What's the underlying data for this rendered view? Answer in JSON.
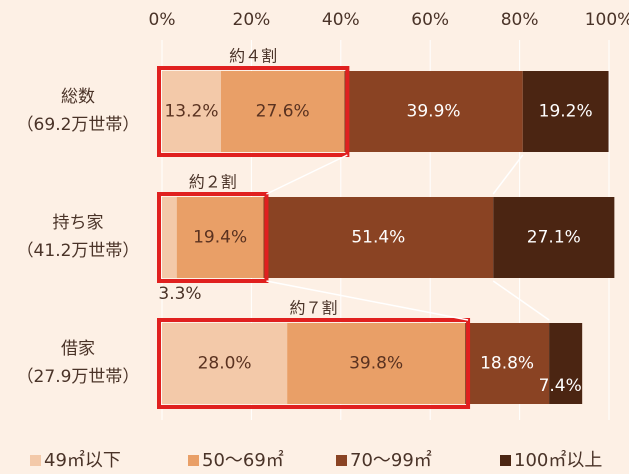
{
  "chart_data": {
    "type": "stacked-bar-horizontal",
    "categories": [
      [
        "総数",
        "（69.2万世帯）"
      ],
      [
        "持ち家",
        "（41.2万世帯）"
      ],
      [
        "借家",
        "（27.9万世帯）"
      ]
    ],
    "series": [
      {
        "name": "49㎡以下",
        "color": "#f3c9a9",
        "values": [
          13.2,
          3.3,
          28.0
        ],
        "value_labels": [
          "13.2%",
          "3.3%",
          "28.0%"
        ]
      },
      {
        "name": "50～69㎡",
        "color": "#e99f67",
        "values": [
          27.6,
          19.4,
          39.8
        ],
        "value_labels": [
          "27.6%",
          "19.4%",
          "39.8%"
        ]
      },
      {
        "name": "70～99㎡",
        "color": "#8a4323",
        "values": [
          39.9,
          51.4,
          18.8
        ],
        "value_labels": [
          "39.9%",
          "51.4%",
          "18.8%"
        ]
      },
      {
        "name": "100㎡以上",
        "color": "#4b2512",
        "values": [
          19.2,
          27.1,
          7.4
        ],
        "value_labels": [
          "19.2%",
          "27.1%",
          "7.4%"
        ]
      }
    ],
    "annotations": [
      "約４割",
      "約２割",
      "約７割"
    ],
    "xlim": [
      0,
      100
    ],
    "xticks": [
      {
        "value": 0,
        "label": "0%"
      },
      {
        "value": 20,
        "label": "20%"
      },
      {
        "value": 40,
        "label": "40%"
      },
      {
        "value": 60,
        "label": "60%"
      },
      {
        "value": 80,
        "label": "80%"
      },
      {
        "value": 100,
        "label": "100%"
      }
    ],
    "grid": true
  }
}
